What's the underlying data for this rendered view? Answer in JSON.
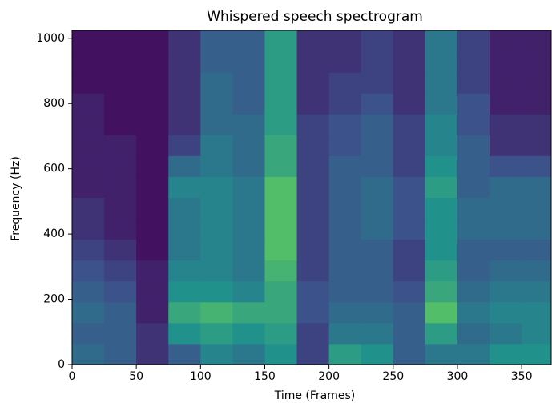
{
  "chart_data": {
    "type": "heatmap",
    "title": "Whispered speech spectrogram",
    "x_label": "Time (Frames)",
    "y_label": "Frequency (Hz)",
    "colormap": "viridis",
    "x": [
      0,
      25,
      50,
      75,
      100,
      125,
      150,
      175,
      200,
      225,
      250,
      275,
      300,
      325,
      350,
      373
    ],
    "y": [
      0,
      64,
      128,
      192,
      256,
      320,
      384,
      448,
      512,
      576,
      640,
      704,
      768,
      832,
      896,
      960,
      1024
    ],
    "z": [
      [
        0.35,
        0.3,
        0.15,
        0.3,
        0.45,
        0.4,
        0.5,
        0.2,
        0.55,
        0.5,
        0.3,
        0.4,
        0.4,
        0.5,
        0.5
      ],
      [
        0.3,
        0.3,
        0.15,
        0.5,
        0.55,
        0.5,
        0.55,
        0.2,
        0.4,
        0.4,
        0.3,
        0.55,
        0.35,
        0.4,
        0.45
      ],
      [
        0.35,
        0.3,
        0.1,
        0.6,
        0.65,
        0.6,
        0.6,
        0.25,
        0.35,
        0.35,
        0.3,
        0.7,
        0.4,
        0.45,
        0.45
      ],
      [
        0.3,
        0.25,
        0.1,
        0.5,
        0.5,
        0.45,
        0.6,
        0.25,
        0.3,
        0.3,
        0.25,
        0.6,
        0.35,
        0.4,
        0.4
      ],
      [
        0.25,
        0.2,
        0.1,
        0.45,
        0.45,
        0.4,
        0.65,
        0.2,
        0.3,
        0.3,
        0.2,
        0.55,
        0.3,
        0.35,
        0.35
      ],
      [
        0.2,
        0.15,
        0.05,
        0.4,
        0.45,
        0.4,
        0.7,
        0.2,
        0.3,
        0.3,
        0.2,
        0.5,
        0.3,
        0.3,
        0.3
      ],
      [
        0.15,
        0.1,
        0.05,
        0.4,
        0.45,
        0.4,
        0.7,
        0.2,
        0.3,
        0.35,
        0.25,
        0.5,
        0.35,
        0.35,
        0.35
      ],
      [
        0.15,
        0.1,
        0.05,
        0.4,
        0.45,
        0.4,
        0.7,
        0.2,
        0.3,
        0.35,
        0.25,
        0.5,
        0.35,
        0.35,
        0.35
      ],
      [
        0.1,
        0.1,
        0.05,
        0.45,
        0.45,
        0.4,
        0.7,
        0.2,
        0.3,
        0.35,
        0.25,
        0.55,
        0.3,
        0.35,
        0.35
      ],
      [
        0.1,
        0.1,
        0.05,
        0.35,
        0.4,
        0.35,
        0.6,
        0.2,
        0.3,
        0.3,
        0.2,
        0.5,
        0.3,
        0.25,
        0.25
      ],
      [
        0.1,
        0.1,
        0.05,
        0.2,
        0.4,
        0.35,
        0.6,
        0.2,
        0.25,
        0.3,
        0.2,
        0.45,
        0.3,
        0.15,
        0.15
      ],
      [
        0.1,
        0.05,
        0.05,
        0.15,
        0.35,
        0.35,
        0.55,
        0.2,
        0.25,
        0.3,
        0.2,
        0.45,
        0.25,
        0.15,
        0.15
      ],
      [
        0.1,
        0.05,
        0.05,
        0.15,
        0.35,
        0.3,
        0.55,
        0.15,
        0.2,
        0.25,
        0.15,
        0.4,
        0.25,
        0.1,
        0.1
      ],
      [
        0.05,
        0.05,
        0.05,
        0.15,
        0.35,
        0.3,
        0.55,
        0.15,
        0.2,
        0.2,
        0.15,
        0.4,
        0.2,
        0.1,
        0.1
      ],
      [
        0.05,
        0.05,
        0.05,
        0.15,
        0.3,
        0.3,
        0.55,
        0.15,
        0.15,
        0.2,
        0.15,
        0.4,
        0.2,
        0.1,
        0.1
      ],
      [
        0.05,
        0.05,
        0.05,
        0.15,
        0.3,
        0.3,
        0.55,
        0.15,
        0.15,
        0.2,
        0.15,
        0.4,
        0.2,
        0.1,
        0.1
      ]
    ],
    "xlim": [
      0,
      373
    ],
    "ylim": [
      0,
      1024
    ],
    "xticks": [
      0,
      50,
      100,
      150,
      200,
      250,
      300,
      350
    ],
    "yticks": [
      0,
      200,
      400,
      600,
      800,
      1000
    ]
  }
}
